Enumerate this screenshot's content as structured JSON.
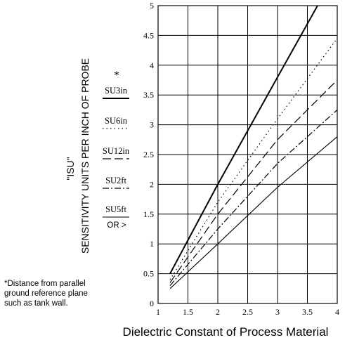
{
  "chart_data": {
    "type": "line",
    "xlabel": "Dielectric Constant of Process Material",
    "ylabel": "SENSITIVITY UNITS PER INCH OF PROBE",
    "ylabel_prefix": "\"ISU\"",
    "xlim": [
      1,
      4
    ],
    "ylim": [
      0,
      5
    ],
    "x_ticks": [
      "1",
      "1.5",
      "2",
      "2.5",
      "3",
      "3.5",
      "4"
    ],
    "y_ticks": [
      "0",
      "0.5",
      "1",
      "1.5",
      "2",
      "2.5",
      "3",
      "3.5",
      "4",
      "4.5",
      "5"
    ],
    "grid": true,
    "legend_asterisk": "*",
    "series": [
      {
        "name": "SU3in",
        "style": "solid-bold",
        "points": [
          [
            1.2,
            0.5
          ],
          [
            2,
            2
          ],
          [
            3,
            3.8
          ],
          [
            3.67,
            5
          ]
        ]
      },
      {
        "name": "SU6in",
        "style": "dotted",
        "points": [
          [
            1.2,
            0.4
          ],
          [
            2,
            1.7
          ],
          [
            3,
            3.1
          ],
          [
            4,
            4.45
          ]
        ]
      },
      {
        "name": "SU12in",
        "style": "long-dash",
        "points": [
          [
            1.2,
            0.35
          ],
          [
            2,
            1.5
          ],
          [
            3,
            2.75
          ],
          [
            4,
            3.75
          ]
        ]
      },
      {
        "name": "SU2ft",
        "style": "dash-dot",
        "points": [
          [
            1.2,
            0.3
          ],
          [
            2,
            1.25
          ],
          [
            3,
            2.35
          ],
          [
            4,
            3.25
          ]
        ]
      },
      {
        "name": "SU5ft",
        "name_suffix": "OR >",
        "style": "solid-thin",
        "points": [
          [
            1.2,
            0.25
          ],
          [
            2,
            1.0
          ],
          [
            3,
            1.95
          ],
          [
            4,
            2.8
          ]
        ]
      }
    ]
  },
  "footnote": {
    "line1": "*Distance from parallel",
    "line2": "ground reference plane",
    "line3": "such as tank wall."
  }
}
